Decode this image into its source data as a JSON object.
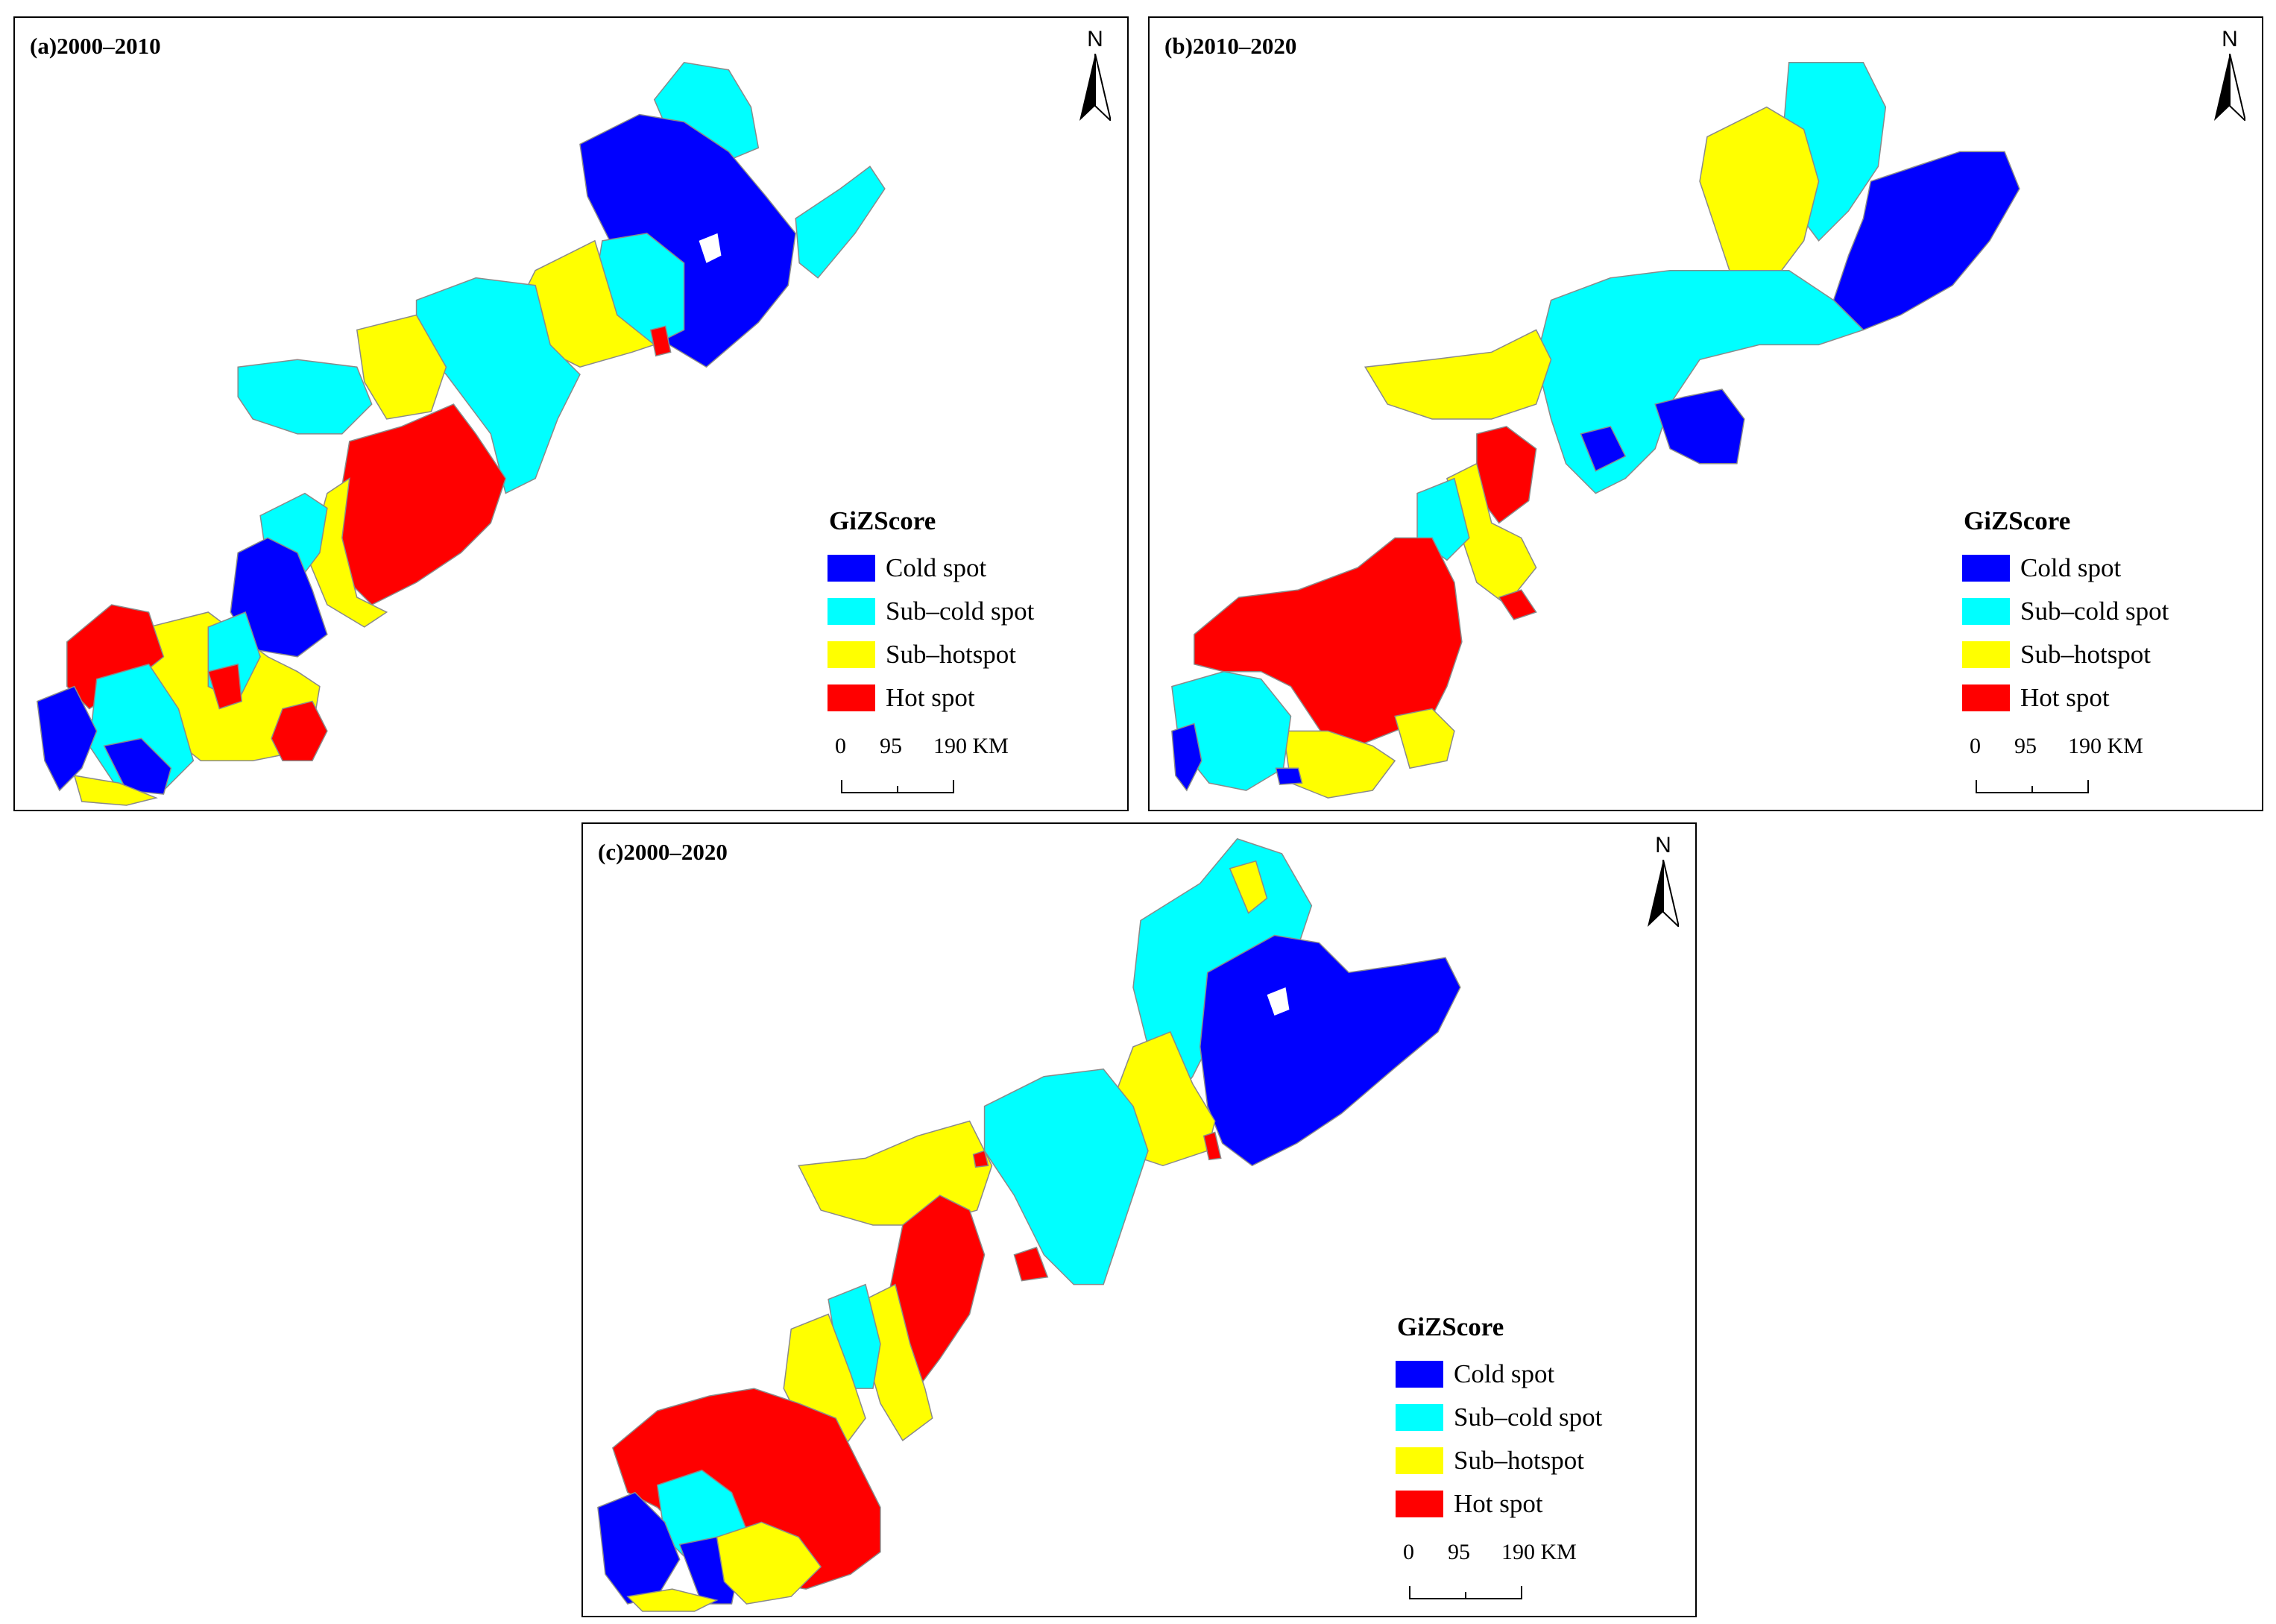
{
  "panels": [
    {
      "id": "a",
      "title": "(a)2000–2010"
    },
    {
      "id": "b",
      "title": "(b)2010–2020"
    },
    {
      "id": "c",
      "title": "(c)2000–2020"
    }
  ],
  "north_label": "N",
  "legend": {
    "title": "GiZScore",
    "items": [
      {
        "label": "Cold spot",
        "color": "#0000ff"
      },
      {
        "label": "Sub–cold spot",
        "color": "#00ffff"
      },
      {
        "label": "Sub–hotspot",
        "color": "#ffff00"
      },
      {
        "label": "Hot spot",
        "color": "#ff0000"
      }
    ]
  },
  "scale": {
    "ticks": [
      "0",
      "95",
      "190 KM"
    ]
  },
  "colors": {
    "cold": "#0000ff",
    "subcold": "#00ffff",
    "subhot": "#ffff00",
    "hot": "#ff0000",
    "boundary": "#8a8a8a"
  }
}
